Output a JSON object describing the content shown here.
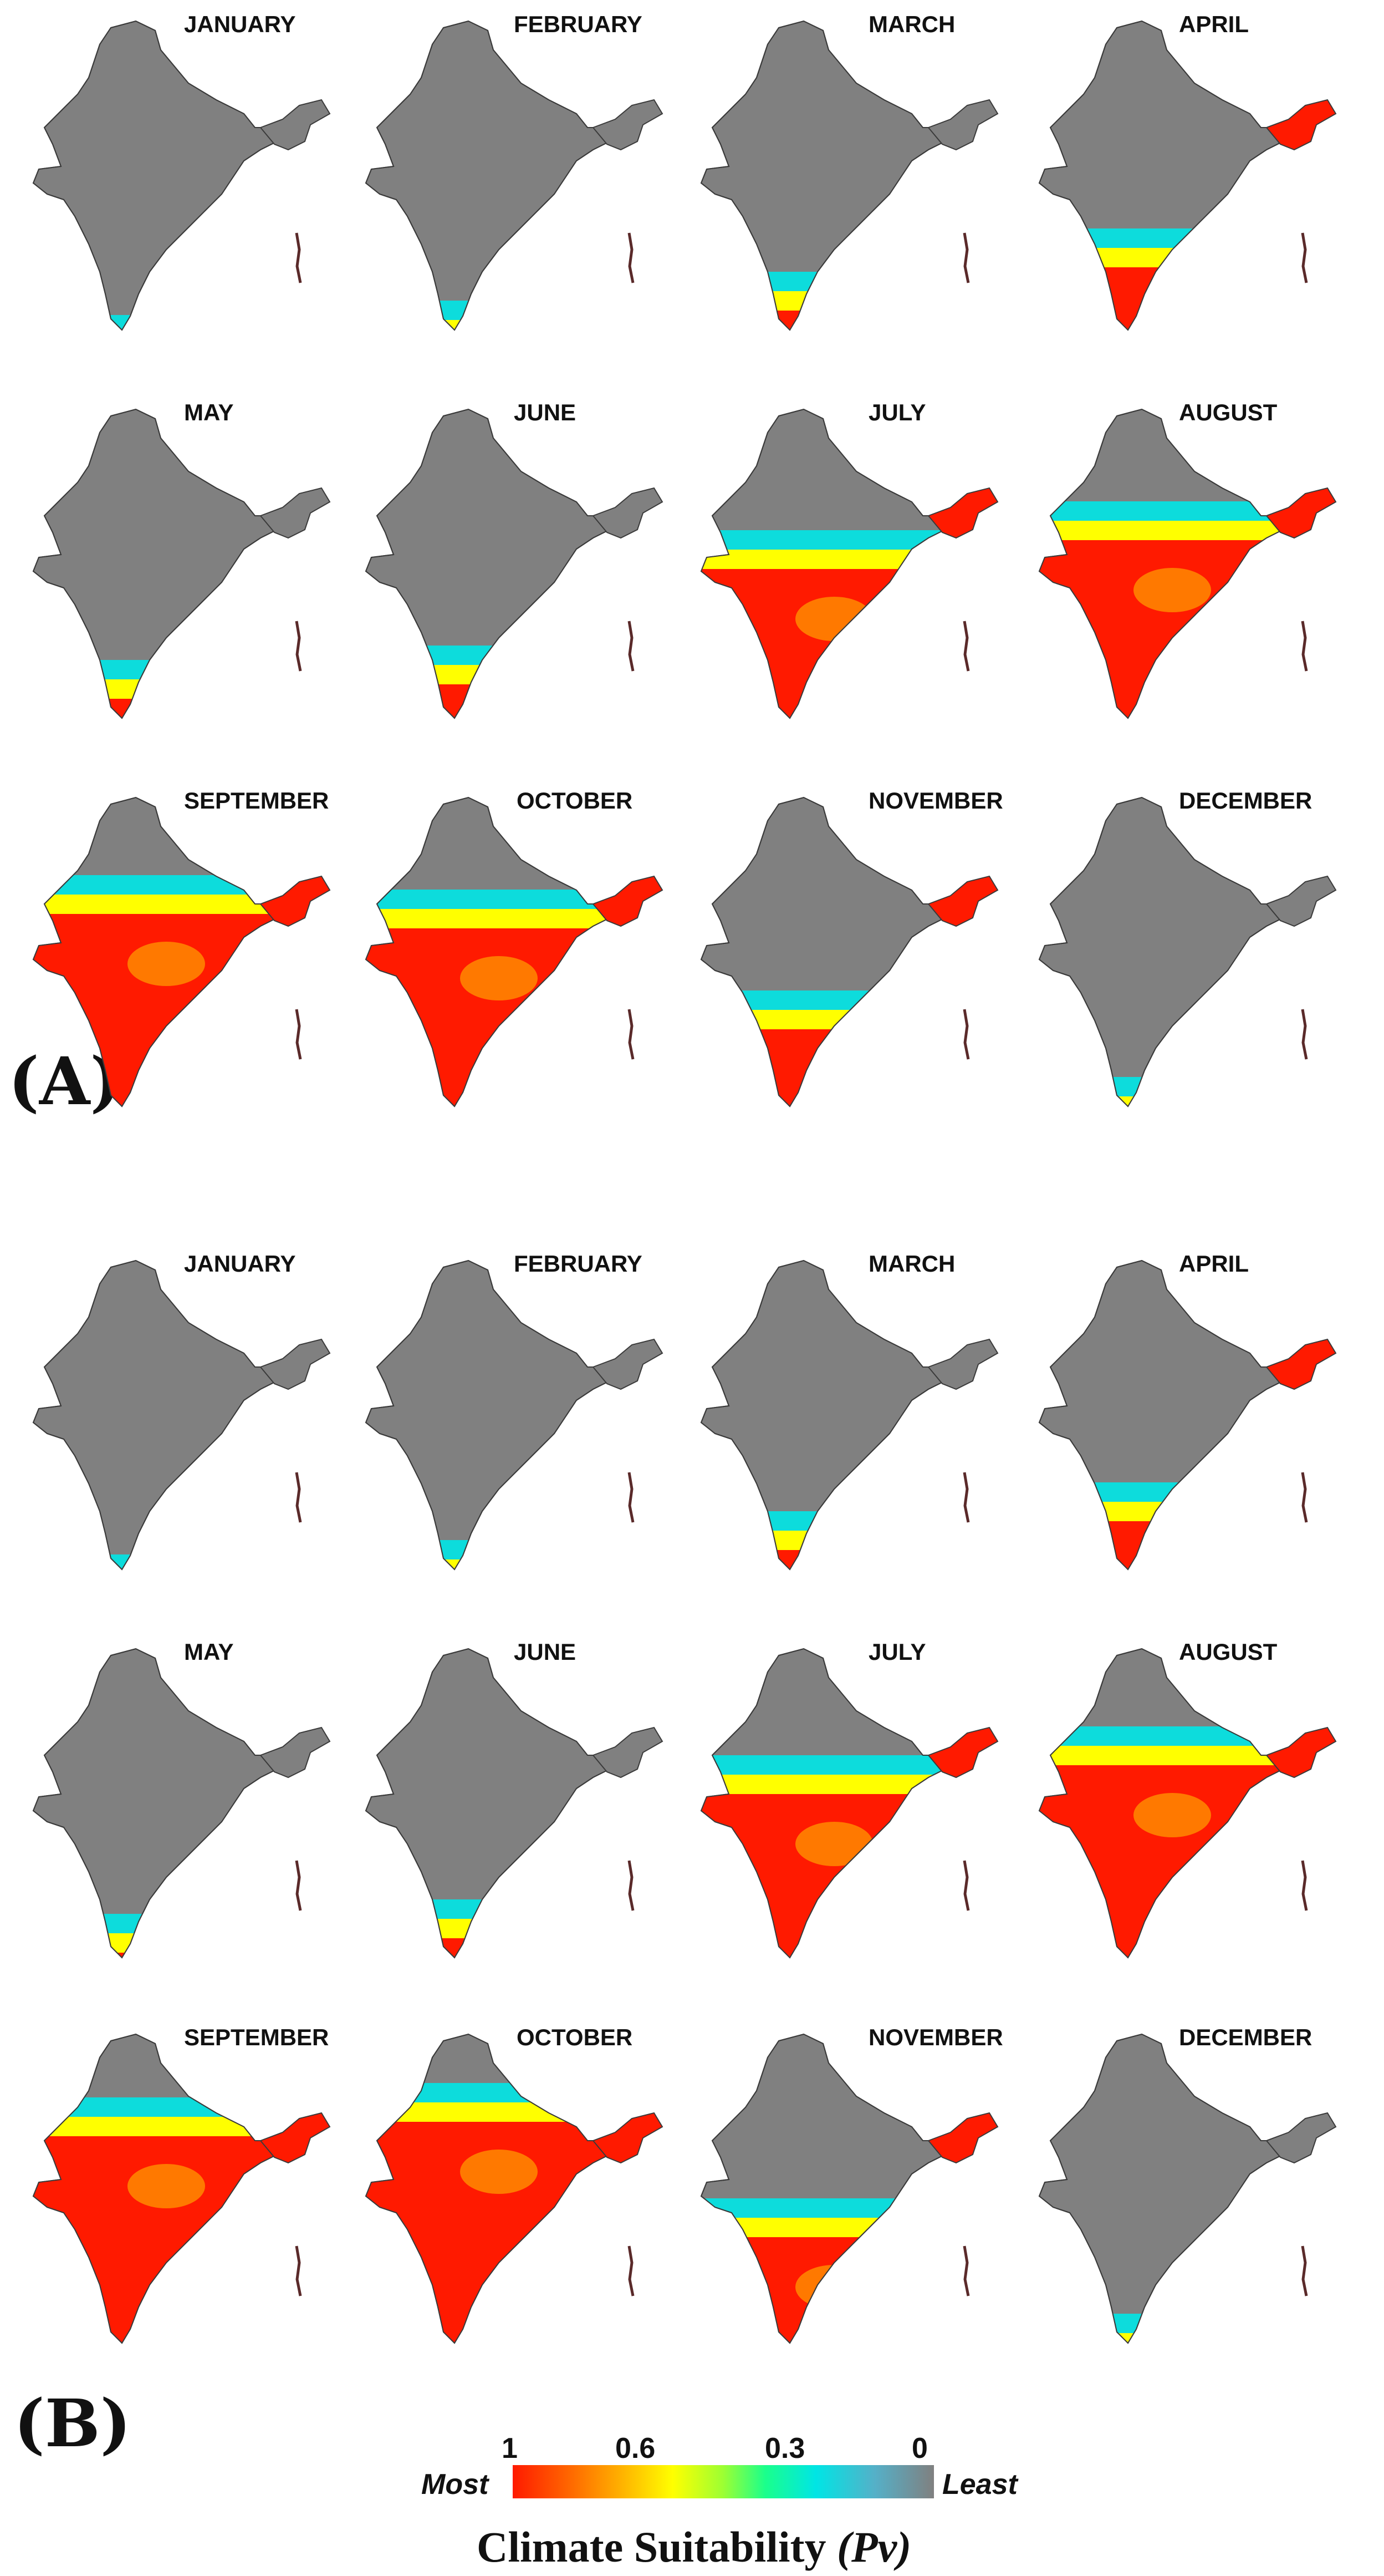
{
  "panels": [
    {
      "label": "(A)",
      "maps": [
        {
          "month": "JANUARY",
          "suitability": 0.1
        },
        {
          "month": "FEBRUARY",
          "suitability": 0.15
        },
        {
          "month": "MARCH",
          "suitability": 0.25
        },
        {
          "month": "APRIL",
          "suitability": 0.4
        },
        {
          "month": "MAY",
          "suitability": 0.25
        },
        {
          "month": "JUNE",
          "suitability": 0.3
        },
        {
          "month": "JULY",
          "suitability": 0.7
        },
        {
          "month": "AUGUST",
          "suitability": 0.8
        },
        {
          "month": "SEPTEMBER",
          "suitability": 0.85
        },
        {
          "month": "OCTOBER",
          "suitability": 0.8
        },
        {
          "month": "NOVEMBER",
          "suitability": 0.45
        },
        {
          "month": "DECEMBER",
          "suitability": 0.15
        }
      ]
    },
    {
      "label": "(B)",
      "maps": [
        {
          "month": "JANUARY",
          "suitability": 0.1
        },
        {
          "month": "FEBRUARY",
          "suitability": 0.15
        },
        {
          "month": "MARCH",
          "suitability": 0.25
        },
        {
          "month": "APRIL",
          "suitability": 0.35
        },
        {
          "month": "MAY",
          "suitability": 0.2
        },
        {
          "month": "JUNE",
          "suitability": 0.25
        },
        {
          "month": "JULY",
          "suitability": 0.75
        },
        {
          "month": "AUGUST",
          "suitability": 0.85
        },
        {
          "month": "SEPTEMBER",
          "suitability": 0.9
        },
        {
          "month": "OCTOBER",
          "suitability": 0.95
        },
        {
          "month": "NOVEMBER",
          "suitability": 0.55
        },
        {
          "month": "DECEMBER",
          "suitability": 0.15
        }
      ]
    }
  ],
  "legend": {
    "ticks": [
      "1",
      "0.6",
      "0.3",
      "0"
    ],
    "most_label": "Most",
    "least_label": "Least",
    "title": "Climate Suitability",
    "title_symbol": "(Pv)",
    "colors": [
      "#ff1a00",
      "#ffb300",
      "#ffff00",
      "#1aff8c",
      "#00e5e5",
      "#808080"
    ]
  },
  "colors": {
    "map_base": "#808080",
    "high": "#ff1a00",
    "mid": "#ffff00",
    "low": "#00e5e5",
    "border": "#3a3a3a"
  }
}
